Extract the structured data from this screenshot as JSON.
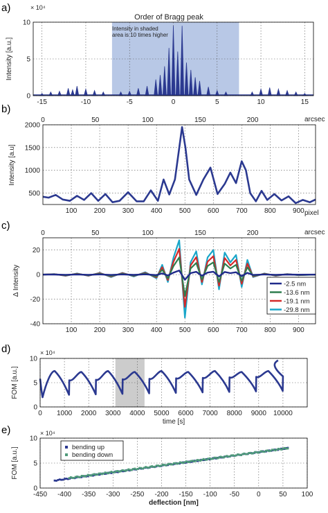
{
  "figure": {
    "panels": [
      {
        "letter": "a)"
      },
      {
        "letter": "b)"
      },
      {
        "letter": "c)"
      },
      {
        "letter": "d)"
      },
      {
        "letter": "e)"
      }
    ]
  },
  "chart_data": [
    {
      "id": "a",
      "type": "line",
      "title": "Order of Bragg peak",
      "xlabel": "",
      "ylabel": "Intensity [a.u.]",
      "y_multiplier": "× 10⁴",
      "xlim": [
        -16,
        16
      ],
      "ylim": [
        0,
        10
      ],
      "x_ticks": [
        -15,
        -10,
        -5,
        0,
        5,
        10,
        15
      ],
      "y_ticks": [
        0,
        5,
        10
      ],
      "grid": true,
      "shaded_region": {
        "x": [
          -7,
          7.5
        ],
        "color": "#b8c8e6"
      },
      "annotation": [
        "Intensity in shaded",
        "area is 10 times higher"
      ],
      "color": "#2b3990",
      "peaks": [
        [
          -15,
          0.3
        ],
        [
          -14,
          0.5
        ],
        [
          -13,
          0.6
        ],
        [
          -12,
          1.0
        ],
        [
          -11.5,
          0.8
        ],
        [
          -11,
          1.3
        ],
        [
          -10,
          0.9
        ],
        [
          -9,
          0.7
        ],
        [
          -8,
          0.5
        ],
        [
          -6,
          0.5
        ],
        [
          -5,
          0.6
        ],
        [
          -4,
          1.0
        ],
        [
          -3,
          1.3
        ],
        [
          -2,
          2.2
        ],
        [
          -1.5,
          2.8
        ],
        [
          -1,
          4.0
        ],
        [
          -0.5,
          6.5
        ],
        [
          0,
          9.5
        ],
        [
          0.5,
          6.0
        ],
        [
          1,
          9.5
        ],
        [
          1.5,
          4.5
        ],
        [
          2,
          3.5
        ],
        [
          2.5,
          2.5
        ],
        [
          3,
          2.0
        ],
        [
          4,
          1.2
        ],
        [
          5,
          0.7
        ],
        [
          6,
          0.5
        ],
        [
          9,
          0.5
        ],
        [
          10,
          0.9
        ],
        [
          11,
          1.1
        ],
        [
          12,
          0.9
        ],
        [
          13,
          0.7
        ],
        [
          14,
          0.5
        ],
        [
          15,
          0.3
        ]
      ]
    },
    {
      "id": "b",
      "type": "line",
      "xlabel": "pixel",
      "x2label": "arcsec",
      "ylabel": "Intensity [a.u]",
      "xlim": [
        0,
        960
      ],
      "x_ticks": [
        100,
        200,
        300,
        400,
        500,
        600,
        700,
        800,
        900
      ],
      "x2lim": [
        0,
        260
      ],
      "x2_ticks": [
        0,
        50,
        100,
        150,
        200
      ],
      "ylim": [
        250,
        2000
      ],
      "y_ticks": [
        500,
        1000,
        1500,
        2000
      ],
      "grid": true,
      "color": "#2b3990",
      "x": [
        0,
        20,
        45,
        70,
        95,
        120,
        145,
        170,
        195,
        220,
        245,
        270,
        300,
        330,
        355,
        380,
        405,
        425,
        445,
        465,
        478,
        490,
        502,
        515,
        540,
        565,
        590,
        615,
        640,
        660,
        680,
        700,
        715,
        730,
        750,
        770,
        790,
        815,
        840,
        865,
        890,
        915,
        940,
        960
      ],
      "y": [
        420,
        400,
        460,
        360,
        330,
        440,
        350,
        500,
        330,
        480,
        300,
        330,
        520,
        320,
        320,
        560,
        330,
        800,
        470,
        800,
        1400,
        1950,
        1500,
        800,
        460,
        800,
        1060,
        480,
        700,
        950,
        720,
        1200,
        1000,
        500,
        320,
        550,
        350,
        480,
        340,
        430,
        280,
        350,
        300,
        360
      ]
    },
    {
      "id": "c",
      "type": "line",
      "xlabel": "",
      "x2label": "arcsec",
      "ylabel": "Δ Intensity",
      "xlim": [
        0,
        960
      ],
      "x_ticks": [
        100,
        200,
        300,
        400,
        500,
        600,
        700,
        800,
        900
      ],
      "x2lim": [
        0,
        260
      ],
      "x2_ticks": [
        0,
        50,
        100,
        150,
        200
      ],
      "ylim": [
        -40,
        30
      ],
      "y_ticks": [
        -40,
        -20,
        0,
        20
      ],
      "grid": true,
      "legend_position": "bottom-right",
      "base_x": [
        0,
        40,
        80,
        120,
        160,
        200,
        240,
        280,
        320,
        360,
        400,
        420,
        440,
        460,
        480,
        500,
        520,
        540,
        560,
        580,
        600,
        620,
        640,
        660,
        680,
        700,
        720,
        740,
        780,
        820,
        860,
        900,
        960
      ],
      "base_y": [
        0,
        0.5,
        -1,
        1,
        -1,
        1.5,
        -2,
        1.5,
        -1.5,
        2,
        -3,
        8,
        -6,
        14,
        28,
        -35,
        10,
        19,
        -8,
        14,
        20,
        -12,
        18,
        10,
        16,
        -10,
        12,
        -2,
        1,
        -1,
        0.5,
        -0.5,
        0
      ],
      "series": [
        {
          "name": "-2.5 nm",
          "color": "#1f2a8a",
          "scale": 0.12,
          "width": 2.4
        },
        {
          "name": "-13.6 nm",
          "color": "#2e7d4f",
          "scale": 0.5,
          "width": 2.2
        },
        {
          "name": "-19.1 nm",
          "color": "#d42a2a",
          "scale": 0.75,
          "width": 2.2
        },
        {
          "name": "-29.8 nm",
          "color": "#19a6c9",
          "scale": 1.0,
          "width": 2.2
        }
      ]
    },
    {
      "id": "d",
      "type": "line",
      "xlabel": "time [s]",
      "ylabel": "FOM [a.u.]",
      "y_multiplier": "× 10⁴",
      "xlim": [
        0,
        11000
      ],
      "x_ticks": [
        0,
        1000,
        2000,
        3000,
        4000,
        5000,
        6000,
        7000,
        8000,
        9000,
        10000
      ],
      "ylim": [
        0,
        10
      ],
      "y_ticks": [
        0,
        5,
        10
      ],
      "grid": true,
      "shaded_region": {
        "x": [
          3100,
          4300
        ],
        "color": "#cccccc"
      },
      "color": "#2b3990",
      "cycle_period": 1100,
      "cycle_start": 100,
      "cycle_count": 9,
      "cycle_low": 2.0,
      "cycle_high": 7.4,
      "end_point": [
        9800,
        9.6
      ]
    },
    {
      "id": "e",
      "type": "scatter",
      "xlabel": "deflection [nm]",
      "ylabel": "FOM [a.u.]",
      "y_multiplier": "× 10⁴",
      "xlim": [
        -450,
        100
      ],
      "x_ticks": [
        -450,
        -400,
        -350,
        -300,
        -250,
        -200,
        -150,
        -100,
        -50,
        0,
        50,
        100
      ],
      "ylim": [
        0,
        10
      ],
      "y_ticks": [
        0,
        5,
        10
      ],
      "grid": true,
      "legend_position": "top-left",
      "series": [
        {
          "name": "bending up",
          "color": "#2b3990",
          "x_range": [
            -420,
            60
          ],
          "y_range": [
            1.5,
            8.0
          ]
        },
        {
          "name": "bending down",
          "color": "#4f9a7a",
          "x_range": [
            -390,
            60
          ],
          "y_range": [
            2.0,
            8.0
          ]
        }
      ]
    }
  ]
}
